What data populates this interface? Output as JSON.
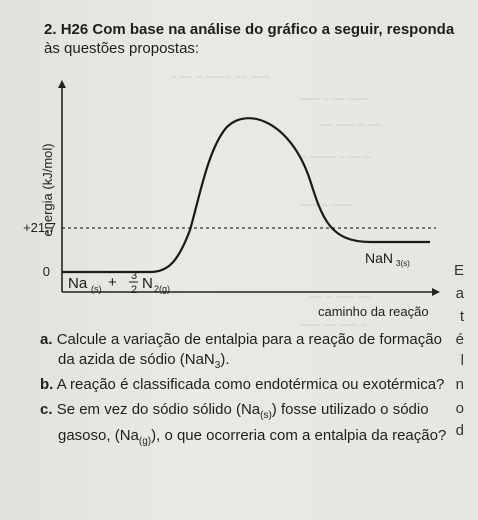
{
  "header": {
    "number": "2.",
    "code": "H26",
    "line1": "Com base na análise do gráfico a seguir, responda",
    "line2": "às questões propostas:"
  },
  "chart_data": {
    "type": "line",
    "ylabel": "energia (kJ/mol)",
    "xlabel": "caminho da reação",
    "y_ticks": [
      "0",
      "+21,7"
    ],
    "levels": [
      {
        "label": "Na(s) + 3/2 N2(g)",
        "energy_kj_mol": 0
      },
      {
        "label": "NaN3(s)",
        "energy_kj_mol": 21.7
      }
    ],
    "series": [
      {
        "x": [
          0,
          1,
          2,
          3,
          4,
          5,
          6,
          7,
          8,
          9,
          10
        ],
        "y": [
          0,
          0,
          0,
          10,
          60,
          95,
          60,
          30,
          21.7,
          21.7,
          21.7
        ]
      }
    ],
    "reactant_text": {
      "base": "Na",
      "sub": "(s)",
      "plus": "+",
      "num": "3",
      "den": "2",
      "n": "N",
      "nsub": "2(g)"
    },
    "product_text": {
      "base": "NaN",
      "sub": "3(s)"
    }
  },
  "questions": [
    {
      "letter": "a.",
      "text1": "Calcule a variação de entalpia para a reação de formação",
      "text2": "da azida de sódio (NaN",
      "sub": "3",
      "end": ")."
    },
    {
      "letter": "b.",
      "text1": "A reação é classificada como endotérmica ou exotérmica?"
    },
    {
      "letter": "c.",
      "text1": "Se em vez do sódio sólido (Na",
      "sub1": "(s)",
      "mid": ") fosse utilizado o sódio",
      "text2": "gasoso, (Na",
      "sub2": "(g)",
      "end": "), o que ocorreria com a entalpia da reação?"
    }
  ],
  "edge_letters": [
    "E",
    "a",
    "t",
    "é",
    "l",
    "n",
    "o",
    "d"
  ]
}
